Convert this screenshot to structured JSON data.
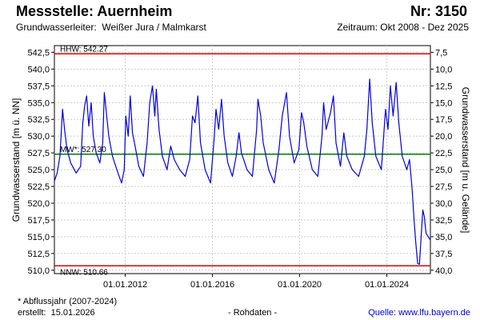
{
  "header": {
    "title": "Messstelle: Auernheim",
    "number": "Nr: 3150",
    "aquifer_label": "Grundwasserleiter:",
    "aquifer": "Weißer Jura / Malmkarst",
    "period": "Zeitraum: Okt 2008 - Dez 2025"
  },
  "footer": {
    "note": "* Abflussjahr (2007-2024)",
    "created_label": "erstellt:",
    "created": "15.01.2026",
    "raw": "- Rohdaten -",
    "source": "Quelle: www.lfu.bayern.de"
  },
  "chart_data": {
    "type": "line",
    "ylabel": "Grundwasserstand [m ü. NN]",
    "y2label": "Grundwasserstand [m u. Gelände]",
    "ylim": [
      509.5,
      543.5
    ],
    "yticks": [
      "510,0",
      "512,5",
      "515,0",
      "517,5",
      "520,0",
      "522,5",
      "525,0",
      "527,5",
      "530,0",
      "532,5",
      "535,0",
      "537,5",
      "540,0",
      "542,5"
    ],
    "y2ticks": [
      "40,0",
      "37,5",
      "35,0",
      "32,5",
      "30,0",
      "27,5",
      "25,0",
      "22,5",
      "20,0",
      "17,5",
      "15,0",
      "12,5",
      "10,0",
      "7,5"
    ],
    "xlim": [
      "2008-10-01",
      "2025-12-31"
    ],
    "xticks": [
      {
        "date": "2012-01-01",
        "label": "01.01.2012"
      },
      {
        "date": "2016-01-01",
        "label": "01.01.2016"
      },
      {
        "date": "2020-01-01",
        "label": "01.01.2020"
      },
      {
        "date": "2024-01-01",
        "label": "01.01.2024"
      }
    ],
    "grid": true,
    "reference_lines": [
      {
        "label": "HHW: 542.27",
        "value": 542.27,
        "color": "#e00000"
      },
      {
        "label": "MW*: 527.30",
        "value": 527.3,
        "color": "#008000"
      },
      {
        "label": "NNW: 510.66",
        "value": 510.66,
        "color": "#e00000"
      }
    ],
    "series": [
      {
        "color": "#0000dd",
        "points": [
          [
            "2008-10-01",
            523.3
          ],
          [
            "2008-11-15",
            524.5
          ],
          [
            "2009-01-01",
            527.0
          ],
          [
            "2009-02-15",
            534.0
          ],
          [
            "2009-03-20",
            531.0
          ],
          [
            "2009-05-01",
            528.0
          ],
          [
            "2009-07-01",
            526.0
          ],
          [
            "2009-10-01",
            524.5
          ],
          [
            "2009-12-15",
            525.5
          ],
          [
            "2010-01-20",
            532.0
          ],
          [
            "2010-02-20",
            534.5
          ],
          [
            "2010-03-25",
            536.0
          ],
          [
            "2010-05-01",
            531.5
          ],
          [
            "2010-06-10",
            535.0
          ],
          [
            "2010-07-15",
            530.0
          ],
          [
            "2010-09-01",
            527.5
          ],
          [
            "2010-11-01",
            526.0
          ],
          [
            "2010-12-20",
            529.0
          ],
          [
            "2011-01-15",
            536.5
          ],
          [
            "2011-02-25",
            533.0
          ],
          [
            "2011-04-01",
            530.0
          ],
          [
            "2011-06-01",
            527.0
          ],
          [
            "2011-09-01",
            524.5
          ],
          [
            "2011-11-01",
            523.0
          ],
          [
            "2011-12-15",
            525.0
          ],
          [
            "2012-01-10",
            533.0
          ],
          [
            "2012-02-20",
            530.0
          ],
          [
            "2012-03-25",
            536.0
          ],
          [
            "2012-05-01",
            530.5
          ],
          [
            "2012-06-15",
            528.5
          ],
          [
            "2012-08-15",
            525.5
          ],
          [
            "2012-11-01",
            524.0
          ],
          [
            "2013-01-01",
            529.0
          ],
          [
            "2013-02-15",
            535.0
          ],
          [
            "2013-04-01",
            537.5
          ],
          [
            "2013-05-10",
            533.0
          ],
          [
            "2013-06-05",
            537.0
          ],
          [
            "2013-07-20",
            531.0
          ],
          [
            "2013-09-15",
            527.0
          ],
          [
            "2013-12-01",
            525.0
          ],
          [
            "2014-02-01",
            528.5
          ],
          [
            "2014-04-01",
            526.5
          ],
          [
            "2014-07-01",
            525.0
          ],
          [
            "2014-10-01",
            524.0
          ],
          [
            "2014-12-15",
            526.5
          ],
          [
            "2015-02-01",
            533.0
          ],
          [
            "2015-03-15",
            532.0
          ],
          [
            "2015-05-01",
            536.0
          ],
          [
            "2015-06-15",
            529.0
          ],
          [
            "2015-09-01",
            525.0
          ],
          [
            "2015-12-01",
            523.0
          ],
          [
            "2016-02-01",
            530.0
          ],
          [
            "2016-03-01",
            534.0
          ],
          [
            "2016-04-15",
            531.0
          ],
          [
            "2016-06-01",
            535.5
          ],
          [
            "2016-07-15",
            530.0
          ],
          [
            "2016-09-15",
            526.0
          ],
          [
            "2016-12-01",
            524.0
          ],
          [
            "2017-02-01",
            527.0
          ],
          [
            "2017-03-20",
            530.5
          ],
          [
            "2017-05-01",
            527.5
          ],
          [
            "2017-08-01",
            525.0
          ],
          [
            "2017-11-01",
            524.0
          ],
          [
            "2018-01-10",
            531.0
          ],
          [
            "2018-02-01",
            535.5
          ],
          [
            "2018-03-20",
            533.0
          ],
          [
            "2018-05-01",
            529.0
          ],
          [
            "2018-08-01",
            525.0
          ],
          [
            "2018-11-01",
            523.0
          ],
          [
            "2019-01-20",
            528.0
          ],
          [
            "2019-03-15",
            533.0
          ],
          [
            "2019-05-25",
            536.5
          ],
          [
            "2019-07-15",
            530.0
          ],
          [
            "2019-10-01",
            526.0
          ],
          [
            "2019-12-20",
            528.0
          ],
          [
            "2020-02-01",
            533.5
          ],
          [
            "2020-03-10",
            532.0
          ],
          [
            "2020-05-01",
            528.5
          ],
          [
            "2020-08-01",
            525.0
          ],
          [
            "2020-11-01",
            524.0
          ],
          [
            "2021-01-10",
            530.0
          ],
          [
            "2021-02-05",
            535.0
          ],
          [
            "2021-03-20",
            531.0
          ],
          [
            "2021-06-01",
            533.5
          ],
          [
            "2021-07-20",
            536.0
          ],
          [
            "2021-09-01",
            529.0
          ],
          [
            "2021-11-15",
            525.5
          ],
          [
            "2022-01-10",
            530.5
          ],
          [
            "2022-03-01",
            527.0
          ],
          [
            "2022-06-01",
            525.0
          ],
          [
            "2022-09-15",
            524.0
          ],
          [
            "2022-12-20",
            527.0
          ],
          [
            "2023-02-01",
            531.0
          ],
          [
            "2023-03-20",
            538.5
          ],
          [
            "2023-05-01",
            532.0
          ],
          [
            "2023-07-01",
            527.0
          ],
          [
            "2023-10-01",
            525.0
          ],
          [
            "2023-12-10",
            534.0
          ],
          [
            "2024-01-20",
            531.0
          ],
          [
            "2024-03-01",
            537.5
          ],
          [
            "2024-04-15",
            533.0
          ],
          [
            "2024-06-05",
            538.0
          ],
          [
            "2024-07-20",
            532.0
          ],
          [
            "2024-09-15",
            527.0
          ],
          [
            "2024-12-01",
            525.0
          ],
          [
            "2025-01-15",
            526.5
          ],
          [
            "2025-02-10",
            524.0
          ],
          [
            "2025-03-01",
            522.0
          ],
          [
            "2025-04-01",
            517.5
          ],
          [
            "2025-05-01",
            514.0
          ],
          [
            "2025-06-01",
            511.0
          ],
          [
            "2025-07-01",
            510.9
          ],
          [
            "2025-08-01",
            515.5
          ],
          [
            "2025-08-25",
            519.0
          ],
          [
            "2025-09-20",
            518.0
          ],
          [
            "2025-10-20",
            515.5
          ],
          [
            "2025-12-31",
            514.5
          ]
        ]
      }
    ]
  }
}
